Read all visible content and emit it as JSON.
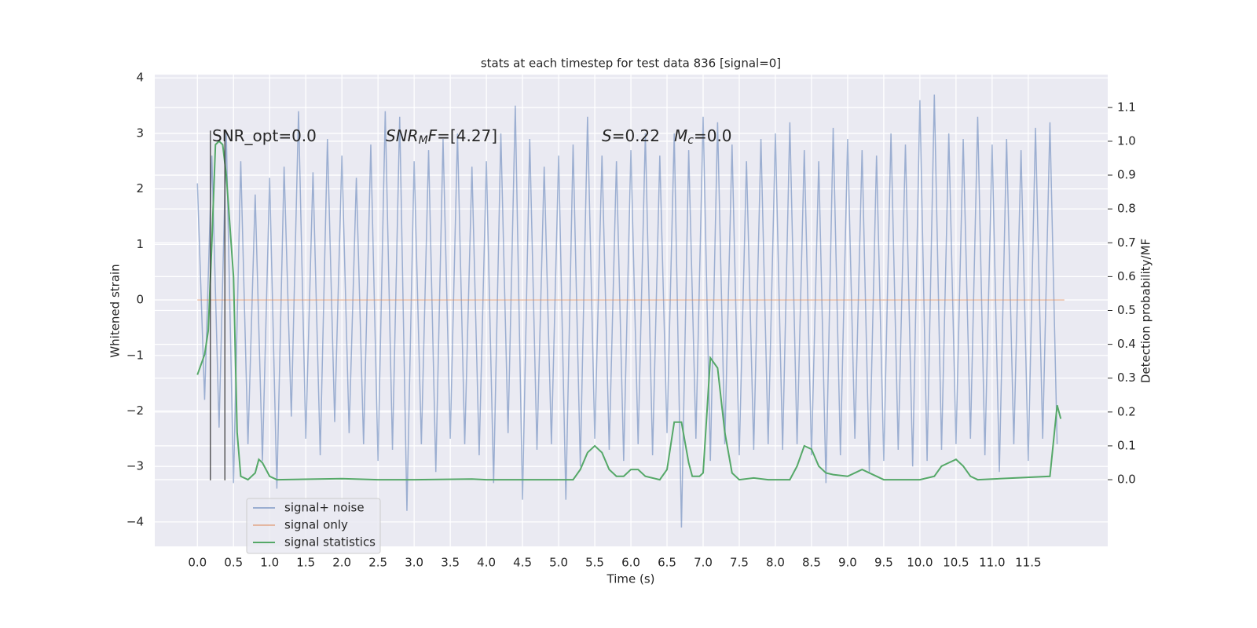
{
  "chart_data": {
    "type": "line",
    "title": "stats at each timestep for test data 836 [signal=0]",
    "x_label": "Time (s)",
    "y_label": "Whitened strain",
    "y2_label": "Detection probability/MF",
    "xlim": [
      -0.59,
      12.6
    ],
    "ylim": [
      -4.44,
      4.06
    ],
    "y2lim": [
      -0.197,
      1.197
    ],
    "xticks": [
      {
        "value": 0,
        "label": "0.0"
      },
      0.5,
      {
        "value": 1,
        "label": "1.0"
      },
      1.5,
      {
        "value": 2,
        "label": "2.0"
      },
      2.5,
      {
        "value": 3,
        "label": "3.0"
      },
      3.5,
      {
        "value": 4,
        "label": "4.0"
      },
      4.5,
      {
        "value": 5,
        "label": "5.0"
      },
      5.5,
      {
        "value": 6,
        "label": "6.0"
      },
      6.5,
      {
        "value": 7,
        "label": "7.0"
      },
      7.5,
      {
        "value": 8,
        "label": "8.0"
      },
      8.5,
      {
        "value": 9,
        "label": "9.0"
      },
      9.5,
      {
        "value": 10,
        "label": "10.0"
      },
      10.5,
      {
        "value": 11,
        "label": "11.0"
      },
      11.5
    ],
    "yticks": [
      {
        "value": -4,
        "label": "−4"
      },
      {
        "value": -3,
        "label": "−3"
      },
      {
        "value": -2,
        "label": "−2"
      },
      {
        "value": -1,
        "label": "−1"
      },
      0,
      1,
      2,
      3,
      4
    ],
    "y2ticks": [
      {
        "value": 0,
        "label": "0.0"
      },
      0.1,
      0.2,
      0.3,
      0.4,
      0.5,
      0.6,
      0.7,
      0.8,
      0.9,
      {
        "value": 1,
        "label": "1.0"
      },
      1.1
    ],
    "grid": true,
    "legend": "lower left",
    "series": [
      {
        "name": "signal+ noise",
        "color": "#4c72b0",
        "x": [
          0,
          0.1,
          0.2,
          0.3,
          0.4,
          0.5,
          0.6,
          0.7,
          0.8,
          0.9,
          1,
          1.1,
          1.2,
          1.3,
          1.4,
          1.5,
          1.6,
          1.7,
          1.8,
          1.9,
          2,
          2.1,
          2.2,
          2.3,
          2.4,
          2.5,
          2.6,
          2.7,
          2.8,
          2.9,
          3,
          3.1,
          3.2,
          3.3,
          3.4,
          3.5,
          3.6,
          3.7,
          3.8,
          3.9,
          4,
          4.1,
          4.2,
          4.3,
          4.4,
          4.5,
          4.6,
          4.7,
          4.8,
          4.9,
          5,
          5.1,
          5.2,
          5.3,
          5.4,
          5.5,
          5.6,
          5.7,
          5.8,
          5.9,
          6,
          6.1,
          6.2,
          6.3,
          6.4,
          6.5,
          6.6,
          6.7,
          6.8,
          6.9,
          7,
          7.1,
          7.2,
          7.3,
          7.4,
          7.5,
          7.6,
          7.7,
          7.8,
          7.9,
          8,
          8.1,
          8.2,
          8.3,
          8.4,
          8.5,
          8.6,
          8.7,
          8.8,
          8.9,
          9,
          9.1,
          9.2,
          9.3,
          9.4,
          9.5,
          9.6,
          9.7,
          9.8,
          9.9,
          10,
          10.1,
          10.2,
          10.3,
          10.4,
          10.5,
          10.6,
          10.7,
          10.8,
          10.9,
          11,
          11.1,
          11.2,
          11.3,
          11.4,
          11.5,
          11.6,
          11.7,
          11.8,
          11.9
        ],
        "values": [
          2.1,
          -1.8,
          2.6,
          -2.3,
          3.0,
          -3.3,
          2.5,
          -2.6,
          1.9,
          -2.9,
          2.2,
          -3.4,
          2.4,
          -2.1,
          3.4,
          -2.5,
          2.3,
          -2.8,
          2.9,
          -2.2,
          2.6,
          -2.4,
          2.2,
          -2.6,
          2.8,
          -2.9,
          3.4,
          -2.7,
          3.3,
          -3.8,
          2.5,
          -2.6,
          2.7,
          -3.1,
          2.9,
          -2.5,
          3.0,
          -2.6,
          2.4,
          -2.8,
          2.5,
          -3.3,
          3.0,
          -2.4,
          3.5,
          -3.6,
          2.9,
          -2.7,
          2.4,
          -2.6,
          2.6,
          -3.6,
          2.8,
          -3.0,
          3.3,
          -2.5,
          2.6,
          -2.7,
          2.5,
          -2.9,
          2.7,
          -2.6,
          3.0,
          -2.8,
          2.6,
          -2.4,
          3.0,
          -4.1,
          2.7,
          -2.5,
          3.3,
          -2.9,
          3.2,
          -2.6,
          2.8,
          -2.8,
          2.5,
          -2.7,
          2.9,
          -2.6,
          3.0,
          -2.7,
          3.2,
          -2.6,
          2.7,
          -2.8,
          2.5,
          -3.3,
          3.1,
          -2.8,
          2.9,
          -2.5,
          2.7,
          -3.1,
          2.6,
          -2.9,
          3.0,
          -2.7,
          2.8,
          -3.0,
          3.6,
          -2.9,
          3.7,
          -2.7,
          3.0,
          -2.6,
          2.9,
          -2.5,
          3.3,
          -2.8,
          2.8,
          -3.1,
          2.9,
          -2.6,
          2.7,
          -2.9,
          3.1,
          -2.5,
          3.2,
          -2.6
        ]
      },
      {
        "name": "signal only",
        "color": "#dd8452",
        "x": [
          0,
          12
        ],
        "values": [
          0,
          0
        ]
      },
      {
        "name": "signal statistics",
        "color": "#55a868",
        "axis": "y2",
        "x": [
          0,
          0.1,
          0.15,
          0.2,
          0.25,
          0.3,
          0.35,
          0.4,
          0.5,
          0.55,
          0.6,
          0.7,
          0.8,
          0.85,
          0.9,
          1,
          1.1,
          2,
          2.5,
          3,
          3.8,
          4,
          5.2,
          5.3,
          5.4,
          5.5,
          5.6,
          5.7,
          5.8,
          5.9,
          6,
          6.1,
          6.2,
          6.4,
          6.5,
          6.6,
          6.7,
          6.8,
          6.85,
          6.95,
          7,
          7.1,
          7.2,
          7.3,
          7.4,
          7.5,
          7.7,
          7.9,
          8.2,
          8.3,
          8.4,
          8.5,
          8.6,
          8.7,
          8.8,
          9,
          9.1,
          9.2,
          9.3,
          9.5,
          10,
          10.2,
          10.3,
          10.4,
          10.5,
          10.6,
          10.7,
          10.8,
          11.8,
          11.9,
          11.95
        ],
        "values": [
          0.31,
          0.37,
          0.44,
          0.7,
          0.99,
          1.0,
          0.99,
          0.9,
          0.6,
          0.14,
          0.01,
          0.0,
          0.02,
          0.06,
          0.05,
          0.01,
          0.0,
          0.003,
          0.0,
          0.0,
          0.002,
          0.0,
          0.0,
          0.03,
          0.08,
          0.1,
          0.08,
          0.03,
          0.01,
          0.01,
          0.03,
          0.03,
          0.01,
          0.0,
          0.03,
          0.17,
          0.17,
          0.05,
          0.01,
          0.01,
          0.02,
          0.36,
          0.33,
          0.14,
          0.02,
          0.0,
          0.005,
          0.0,
          0.0,
          0.04,
          0.1,
          0.09,
          0.04,
          0.02,
          0.015,
          0.01,
          0.02,
          0.03,
          0.02,
          0.0,
          0.0,
          0.01,
          0.04,
          0.05,
          0.06,
          0.04,
          0.01,
          0.0,
          0.01,
          0.22,
          0.18
        ]
      }
    ],
    "vlines": [
      {
        "x": 0.18,
        "y": [
          -3.25,
          3.05
        ]
      },
      {
        "x": 0.38,
        "y": [
          -3.25,
          3.05
        ]
      }
    ],
    "annotations": [
      [
        {
          "text": "SNR_opt=0.0"
        }
      ],
      [
        {
          "text": "SNR",
          "style": "italic"
        },
        {
          "text": "M",
          "style": "sub"
        },
        {
          "text": "F",
          "style": "italic"
        },
        {
          "text": "=[4.27]"
        }
      ],
      [
        {
          "text": "S",
          "style": "italic"
        },
        {
          "text": "=0.22"
        }
      ],
      [
        {
          "text": "M",
          "style": "italic"
        },
        {
          "text": "c",
          "style": "sub"
        },
        {
          "text": "=0.0"
        }
      ]
    ]
  }
}
